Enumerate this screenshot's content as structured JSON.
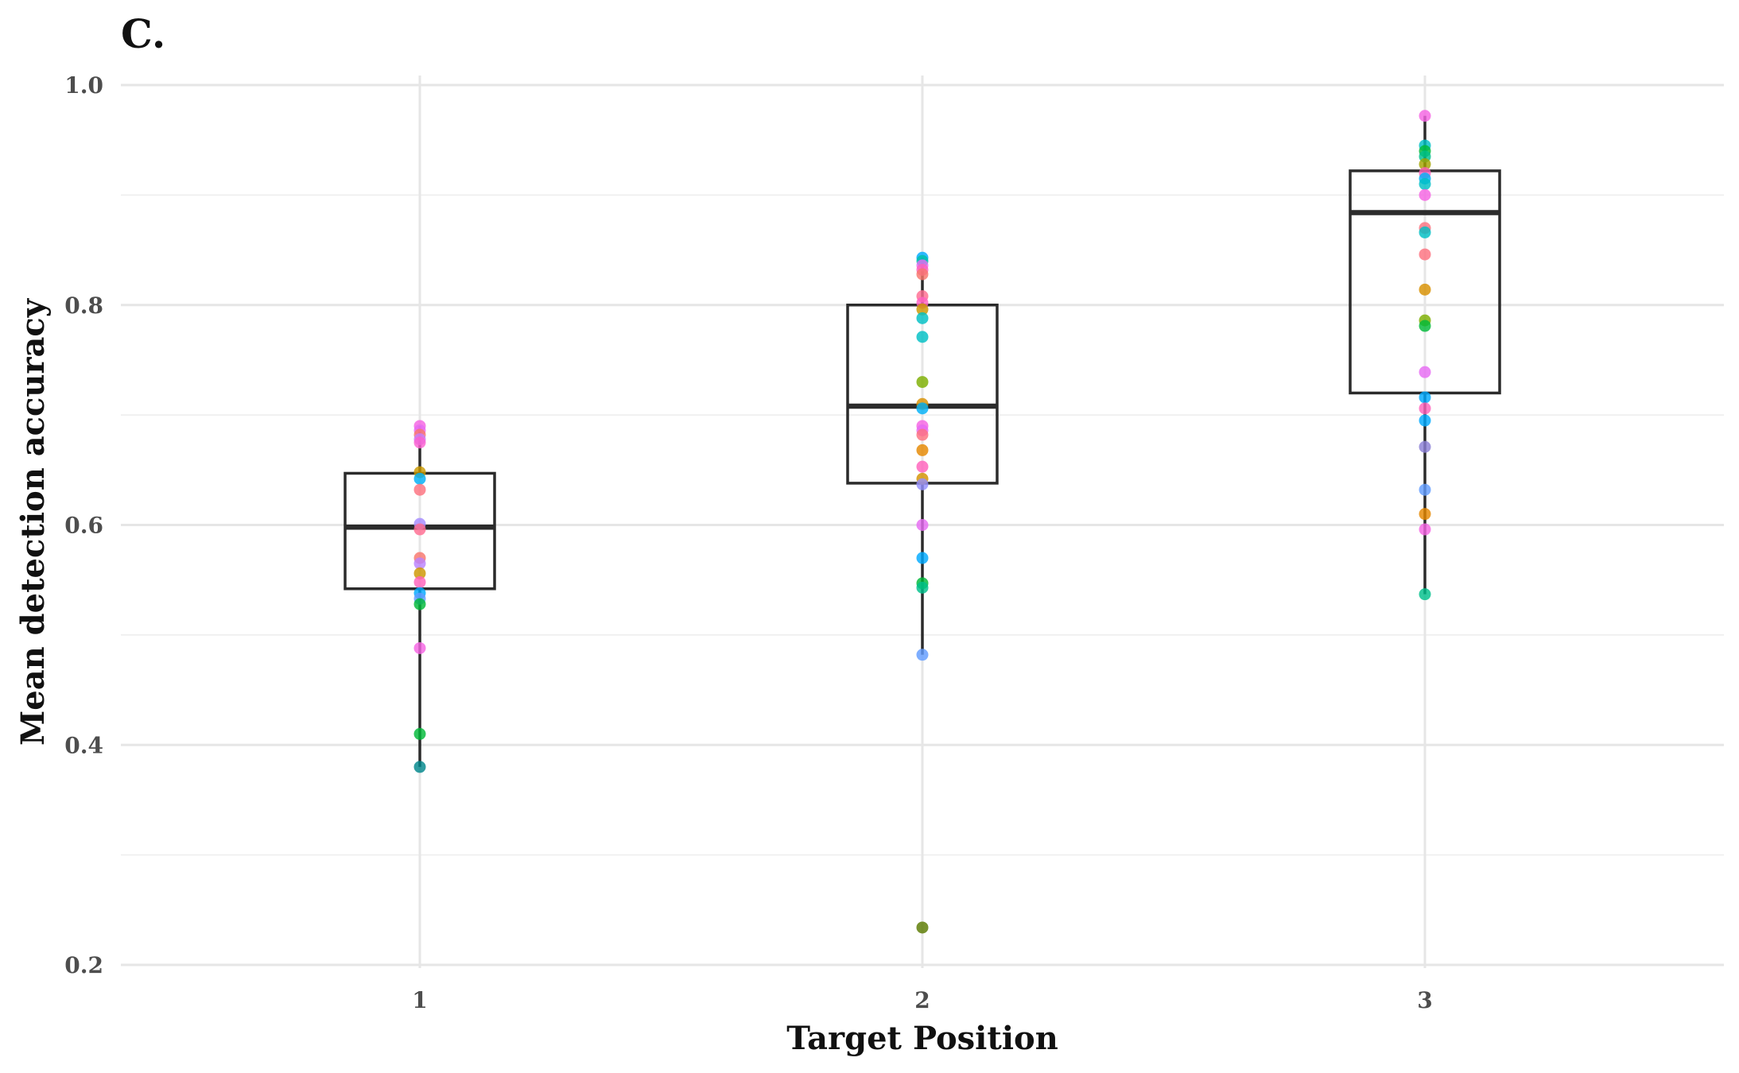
{
  "chart_data": {
    "type": "box",
    "panel_label": "C.",
    "title": "",
    "xlabel": "Target Position",
    "ylabel": "Mean detection accuracy",
    "categories": [
      "1",
      "2",
      "3"
    ],
    "ylim": [
      0.2,
      1.0
    ],
    "y_ticks": [
      0.2,
      0.4,
      0.6,
      0.8,
      1.0
    ],
    "y_tick_labels": [
      "0.2",
      "0.4",
      "0.6",
      "0.8",
      "1.0"
    ],
    "grid": true,
    "legend": "none",
    "boxes": [
      {
        "category": "1",
        "lower_whisker": 0.38,
        "q1": 0.542,
        "median": 0.598,
        "q3": 0.647,
        "upper_whisker": 0.69
      },
      {
        "category": "2",
        "lower_whisker": 0.482,
        "q1": 0.638,
        "median": 0.708,
        "q3": 0.8,
        "upper_whisker": 0.843
      },
      {
        "category": "3",
        "lower_whisker": 0.537,
        "q1": 0.72,
        "median": 0.884,
        "q3": 0.922,
        "upper_whisker": 0.972
      }
    ],
    "points": [
      {
        "category": "1",
        "values": [
          0.69,
          0.686,
          0.682,
          0.678,
          0.675,
          0.648,
          0.642,
          0.632,
          0.601,
          0.596,
          0.57,
          0.565,
          0.556,
          0.548,
          0.538,
          0.533,
          0.528,
          0.488,
          0.41,
          0.38
        ],
        "colors": [
          "#f564e3",
          "#e76bf3",
          "#f8766d",
          "#c77cff",
          "#fd61d1",
          "#c99800",
          "#00b0f6",
          "#fc717f",
          "#a58aff",
          "#ff6c91",
          "#f8766d",
          "#b983ff",
          "#cd9600",
          "#ff62bc",
          "#00a9ff",
          "#619cff",
          "#00ba38",
          "#f564e3",
          "#00ba38",
          "#00868b"
        ]
      },
      {
        "category": "2",
        "values": [
          0.843,
          0.84,
          0.836,
          0.832,
          0.828,
          0.808,
          0.802,
          0.796,
          0.788,
          0.771,
          0.73,
          0.71,
          0.706,
          0.69,
          0.686,
          0.682,
          0.668,
          0.653,
          0.642,
          0.637,
          0.6,
          0.57,
          0.547,
          0.543,
          0.482,
          0.234
        ],
        "colors": [
          "#00a9ff",
          "#00c1a9",
          "#e76bf3",
          "#ff62bc",
          "#f8766d",
          "#ff6c91",
          "#ff61c3",
          "#cd9600",
          "#00bfc4",
          "#00bfc4",
          "#7cae00",
          "#d89000",
          "#00b0f6",
          "#f564e3",
          "#e76bf3",
          "#fc717f",
          "#e58700",
          "#ff62bc",
          "#d39200",
          "#9590ff",
          "#e76bf3",
          "#00a9ff",
          "#00ba38",
          "#00c08b",
          "#619cff",
          "#5a7a00"
        ]
      },
      {
        "category": "3",
        "values": [
          0.972,
          0.945,
          0.94,
          0.935,
          0.928,
          0.92,
          0.915,
          0.91,
          0.9,
          0.87,
          0.866,
          0.846,
          0.814,
          0.786,
          0.781,
          0.739,
          0.716,
          0.706,
          0.695,
          0.671,
          0.632,
          0.61,
          0.596,
          0.537
        ],
        "colors": [
          "#f564e3",
          "#00bfc4",
          "#00ba38",
          "#00c08b",
          "#a3a500",
          "#ff62bc",
          "#00b0f6",
          "#00bfc4",
          "#f564e3",
          "#fc717f",
          "#00bfc4",
          "#fc717f",
          "#d89000",
          "#7cae00",
          "#00ba38",
          "#e76bf3",
          "#00a9ff",
          "#ff62bc",
          "#00a9ff",
          "#8b7fd6",
          "#619cff",
          "#e58700",
          "#f564e3",
          "#00c08b"
        ]
      }
    ]
  }
}
